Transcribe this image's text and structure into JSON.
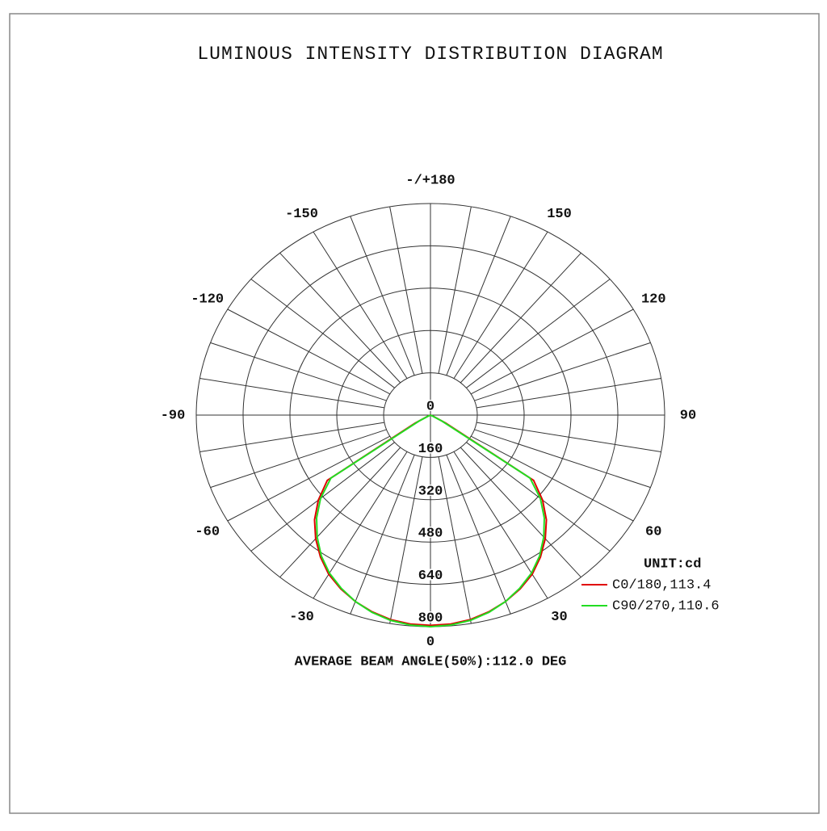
{
  "chart_data": {
    "type": "polar",
    "title": "LUMINOUS INTENSITY DISTRIBUTION DIAGRAM",
    "footer": "AVERAGE BEAM ANGLE(50%):112.0 DEG",
    "unit_label": "UNIT:cd",
    "x": [
      -90,
      -85,
      -80,
      -75,
      -70,
      -65,
      -60,
      -55,
      -50,
      -45,
      -40,
      -35,
      -30,
      -25,
      -20,
      -15,
      -10,
      -5,
      0,
      5,
      10,
      15,
      20,
      25,
      30,
      35,
      40,
      45,
      50,
      55,
      60,
      65,
      70,
      75,
      80,
      85,
      90
    ],
    "series": [
      {
        "name": "C0/180,113.4",
        "color": "#e00000",
        "values": [
          0,
          0,
          0,
          0,
          0,
          10,
          60,
          430,
          500,
          560,
          610,
          655,
          695,
          725,
          750,
          770,
          785,
          793,
          795,
          793,
          785,
          770,
          750,
          725,
          695,
          655,
          610,
          560,
          500,
          430,
          60,
          10,
          0,
          0,
          0,
          0,
          0
        ]
      },
      {
        "name": "C90/270,110.6",
        "color": "#22dd22",
        "values": [
          0,
          0,
          0,
          0,
          0,
          5,
          45,
          415,
          490,
          550,
          602,
          650,
          690,
          722,
          750,
          772,
          788,
          797,
          800,
          797,
          788,
          772,
          750,
          722,
          690,
          650,
          602,
          550,
          490,
          415,
          45,
          5,
          0,
          0,
          0,
          0,
          0
        ]
      }
    ],
    "rlim": [
      0,
      800
    ],
    "rticks": [
      0,
      160,
      320,
      480,
      640,
      800
    ],
    "xticks": [
      0,
      30,
      60,
      90,
      120,
      150,
      {
        "value": 180,
        "label": "-/+180"
      },
      -150,
      -120,
      -90,
      -60,
      -30
    ],
    "xgrid": [
      -170,
      -160,
      -150,
      -140,
      -130,
      -120,
      -110,
      -100,
      -90,
      -80,
      -70,
      -60,
      -50,
      -40,
      -30,
      -20,
      -10,
      0,
      10,
      20,
      30,
      40,
      50,
      60,
      70,
      80,
      90,
      100,
      110,
      120,
      130,
      140,
      150,
      160,
      170,
      180
    ],
    "grid": true
  }
}
